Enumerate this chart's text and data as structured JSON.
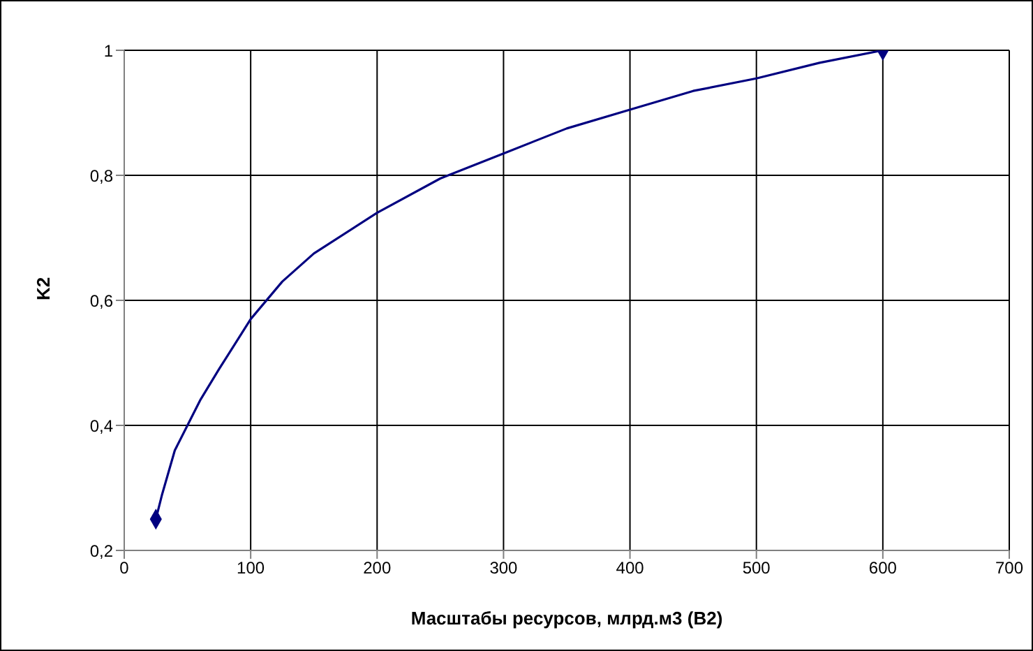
{
  "chart_data": {
    "type": "line",
    "xlabel": "Масштабы ресурсов, млрд.м3 (B2)",
    "ylabel": "K2",
    "xlim": [
      0,
      700
    ],
    "xticks": [
      0,
      100,
      200,
      300,
      400,
      500,
      600,
      700
    ],
    "ylim": [
      0.2,
      1
    ],
    "yticks": [
      {
        "value": 0.2,
        "label": "0,2"
      },
      {
        "value": 0.4,
        "label": "0,4"
      },
      {
        "value": 0.6,
        "label": "0,6"
      },
      {
        "value": 0.8,
        "label": "0,8"
      },
      1
    ],
    "grid": true,
    "series": [
      {
        "type": "line",
        "color": "#000080",
        "marker": "none",
        "line_style": "solid",
        "x": [
          25,
          30,
          40,
          50,
          60,
          75,
          100,
          125,
          150,
          200,
          250,
          300,
          350,
          400,
          450,
          500,
          550,
          600
        ],
        "values": [
          0.25,
          0.29,
          0.36,
          0.4,
          0.44,
          0.49,
          0.57,
          0.63,
          0.675,
          0.74,
          0.795,
          0.835,
          0.875,
          0.905,
          0.935,
          0.955,
          0.98,
          1
        ]
      },
      {
        "type": "scatter",
        "color": "#000080",
        "marker": "diamond",
        "x": [
          25,
          600
        ],
        "values": [
          0.25,
          1
        ]
      }
    ]
  }
}
